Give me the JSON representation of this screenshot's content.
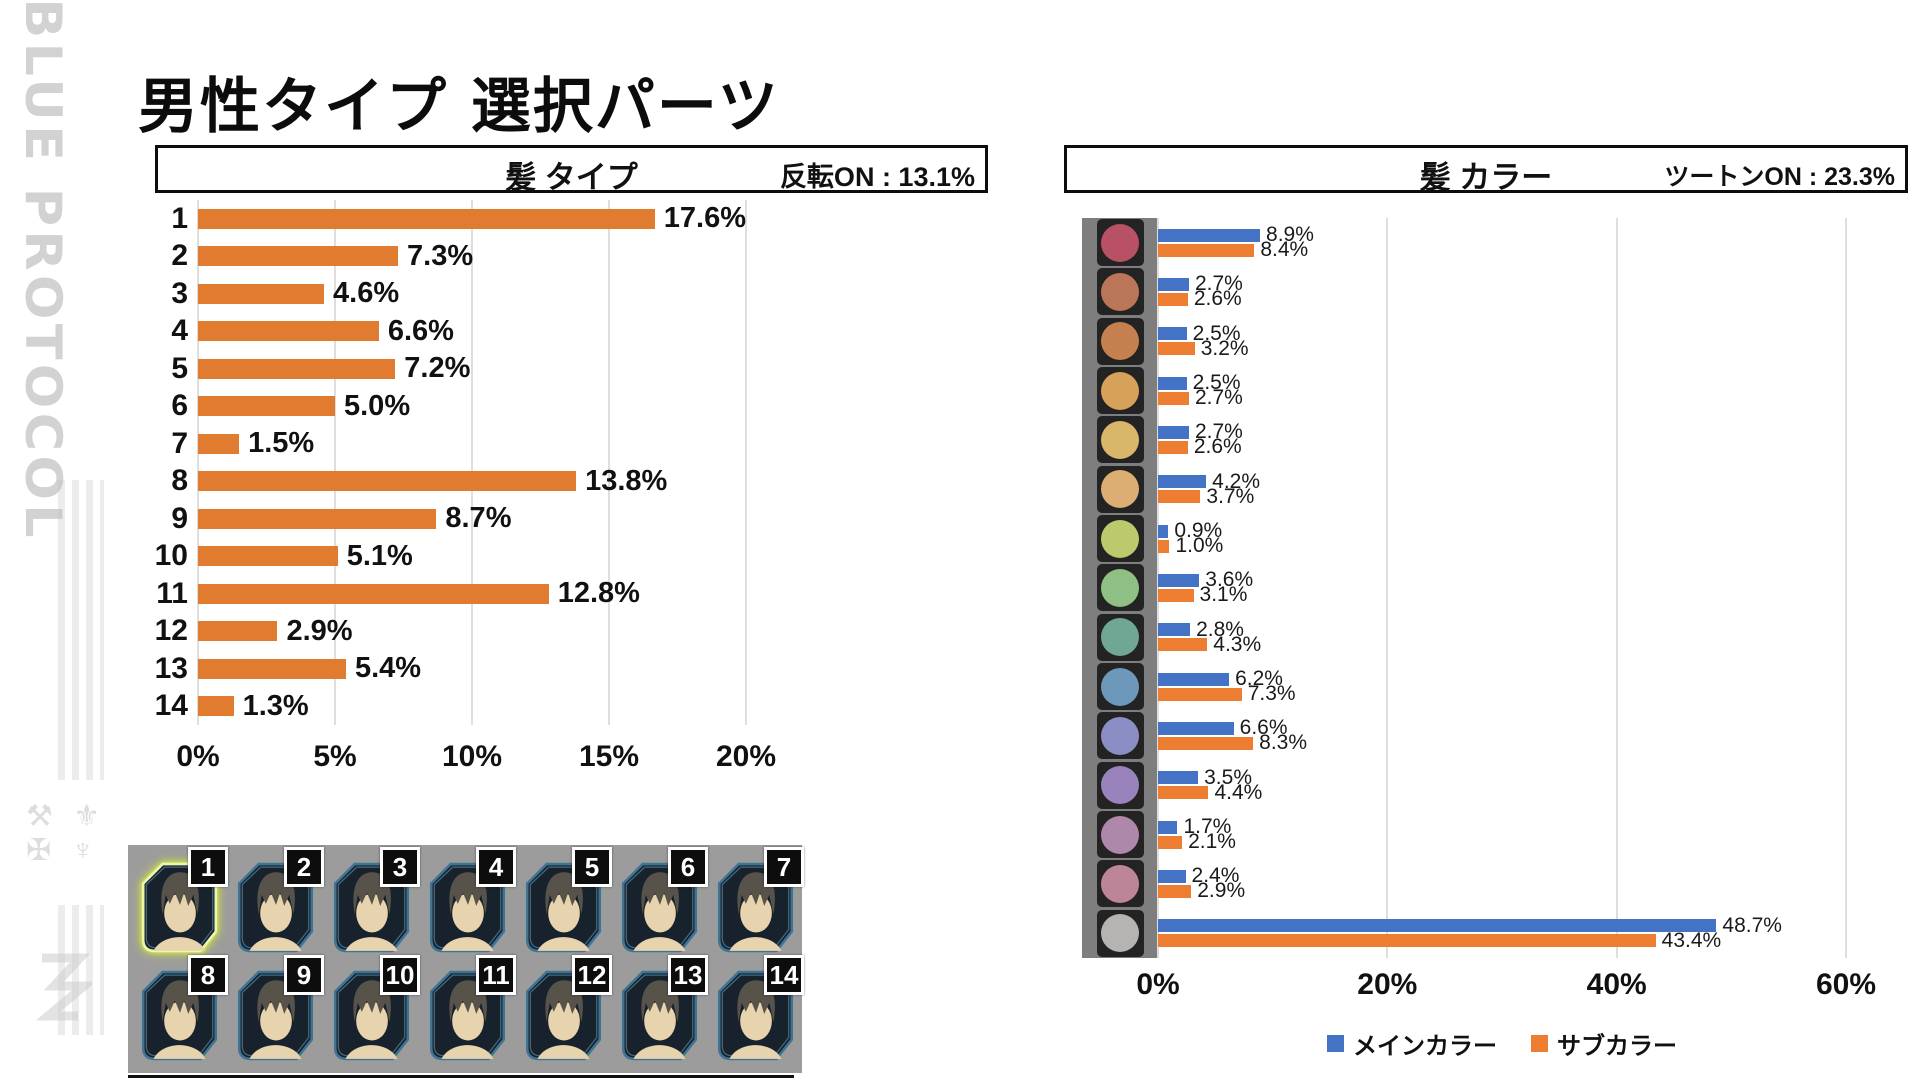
{
  "page": {
    "title": "男性タイプ 選択パーツ",
    "watermark": "BLUE PROTOCOL"
  },
  "chart_data": [
    {
      "type": "bar",
      "orientation": "horizontal",
      "title": "髪 タイプ",
      "annotation": "反転ON : 13.1%",
      "categories": [
        "1",
        "2",
        "3",
        "4",
        "5",
        "6",
        "7",
        "8",
        "9",
        "10",
        "11",
        "12",
        "13",
        "14"
      ],
      "values": [
        17.6,
        7.3,
        4.6,
        6.6,
        7.2,
        5.0,
        1.5,
        13.8,
        8.7,
        5.1,
        12.8,
        2.9,
        5.4,
        1.3
      ],
      "value_labels": [
        "17.6%",
        "7.3%",
        "4.6%",
        "6.6%",
        "7.2%",
        "5.0%",
        "1.5%",
        "13.8%",
        "8.7%",
        "5.1%",
        "12.8%",
        "2.9%",
        "5.4%",
        "1.3%"
      ],
      "x_ticks": [
        "0%",
        "5%",
        "10%",
        "15%",
        "20%"
      ],
      "xlim": [
        0,
        20
      ],
      "bar_color": "#E07B2F",
      "grid": true,
      "legend_position": "none"
    },
    {
      "type": "bar",
      "orientation": "horizontal",
      "title": "髪 カラー",
      "annotation": "ツートンON : 23.3%",
      "categories": [
        "color-rose",
        "color-terracotta",
        "color-orange-brown",
        "color-gold",
        "color-pale-gold",
        "color-tan",
        "color-yellow-green",
        "color-green",
        "color-teal",
        "color-blue",
        "color-periwinkle",
        "color-purple",
        "color-mauve",
        "color-dusty-pink",
        "color-white-gray"
      ],
      "swatch_colors": [
        "#b85163",
        "#bb7659",
        "#c58050",
        "#d6a158",
        "#d9b76a",
        "#dcae74",
        "#bcc96c",
        "#8fbf85",
        "#6fa794",
        "#6d98ba",
        "#8a8ec4",
        "#9a82bc",
        "#ae87ab",
        "#bd8598",
        "#b6b3b3"
      ],
      "series": [
        {
          "name": "メインカラー",
          "color": "#4472C4",
          "values": [
            8.9,
            2.7,
            2.5,
            2.5,
            2.7,
            4.2,
            0.9,
            3.6,
            2.8,
            6.2,
            6.6,
            3.5,
            1.7,
            2.4,
            48.7
          ],
          "value_labels": [
            "8.9%",
            "2.7%",
            "2.5%",
            "2.5%",
            "2.7%",
            "4.2%",
            "0.9%",
            "3.6%",
            "2.8%",
            "6.2%",
            "6.6%",
            "3.5%",
            "1.7%",
            "2.4%",
            "48.7%"
          ]
        },
        {
          "name": "サブカラー",
          "color": "#ED7D31",
          "values": [
            8.4,
            2.6,
            3.2,
            2.7,
            2.6,
            3.7,
            1.0,
            3.1,
            4.3,
            7.3,
            8.3,
            4.4,
            2.1,
            2.9,
            43.4
          ],
          "value_labels": [
            "8.4%",
            "2.6%",
            "3.2%",
            "2.7%",
            "2.6%",
            "3.7%",
            "1.0%",
            "3.1%",
            "4.3%",
            "7.3%",
            "8.3%",
            "4.4%",
            "2.1%",
            "2.9%",
            "43.4%"
          ]
        }
      ],
      "x_ticks": [
        "0%",
        "20%",
        "40%",
        "60%"
      ],
      "xlim": [
        0,
        60
      ],
      "grid": true,
      "legend_position": "bottom"
    }
  ],
  "thumbnails": {
    "selected_number": "1",
    "numbers": [
      "1",
      "2",
      "3",
      "4",
      "5",
      "6",
      "7",
      "8",
      "9",
      "10",
      "11",
      "12",
      "13",
      "14"
    ]
  }
}
